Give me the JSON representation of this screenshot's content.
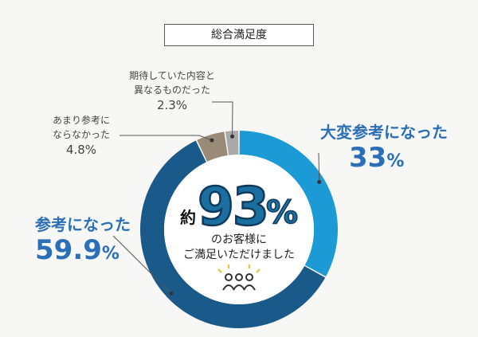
{
  "chart_data": {
    "type": "pie",
    "title": "総合満足度",
    "categories": [
      "大変参考になった",
      "参考になった",
      "あまり参考にならなかった",
      "期待していた内容と異なるものだった"
    ],
    "values": [
      33,
      59.9,
      4.8,
      2.3
    ],
    "value_labels": [
      "33",
      "59.9",
      "4.8",
      "2.3"
    ],
    "unit": "%",
    "colors": [
      "#1b9ad6",
      "#1a5a8a",
      "#9a8a78",
      "#a9a9a9"
    ],
    "style": "donut",
    "legend": "none"
  },
  "labels": {
    "very_helpful_name": "大変参考になった",
    "helpful_name": "参考になった",
    "not_helpful_line1": "あまり参考に",
    "not_helpful_line2": "ならなかった",
    "different_line1": "期待していた内容と",
    "different_line2": "異なるものだった"
  },
  "center": {
    "prefix": "約",
    "number": "93",
    "unit": "%",
    "line1": "のお客様に",
    "line2": "ご満足いただけました",
    "icon": "people-group-icon"
  },
  "accent_color": "#2a6fb8"
}
